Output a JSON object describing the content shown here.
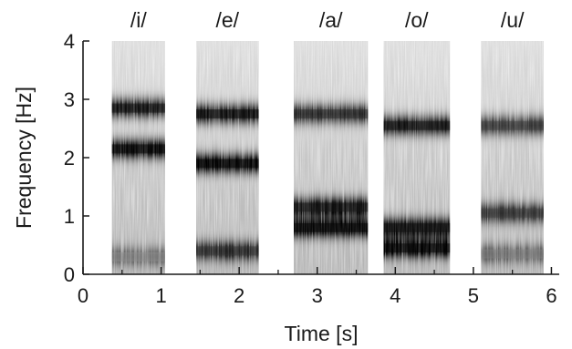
{
  "chart_data": {
    "type": "heatmap",
    "title": "",
    "xlabel": "Time [s]",
    "ylabel": "Frequency [Hz]",
    "xlim": [
      0,
      6.1
    ],
    "ylim": [
      0,
      4
    ],
    "xticks": [
      0,
      1,
      2,
      3,
      4,
      5,
      6
    ],
    "yticks": [
      0,
      1,
      2,
      3,
      4
    ],
    "x_minor_ticks": [
      0.5,
      1.5,
      2.5,
      3.5,
      4.5,
      5.5
    ],
    "grid": false,
    "segments": [
      {
        "label": "/i/",
        "start": 0.37,
        "end": 1.05,
        "formants": [
          {
            "freq": 0.3,
            "strength": 0.38
          },
          {
            "freq": 2.15,
            "strength": 0.92
          },
          {
            "freq": 2.85,
            "strength": 0.85
          }
        ]
      },
      {
        "label": "/e/",
        "start": 1.45,
        "end": 2.25,
        "formants": [
          {
            "freq": 0.4,
            "strength": 0.72
          },
          {
            "freq": 1.9,
            "strength": 0.95
          },
          {
            "freq": 2.75,
            "strength": 0.88
          }
        ]
      },
      {
        "label": "/a/",
        "start": 2.7,
        "end": 3.65,
        "formants": [
          {
            "freq": 0.8,
            "strength": 0.97
          },
          {
            "freq": 1.15,
            "strength": 0.85
          },
          {
            "freq": 2.75,
            "strength": 0.75
          }
        ]
      },
      {
        "label": "/o/",
        "start": 3.85,
        "end": 4.7,
        "formants": [
          {
            "freq": 0.45,
            "strength": 0.95
          },
          {
            "freq": 0.8,
            "strength": 0.9
          },
          {
            "freq": 2.55,
            "strength": 0.85
          }
        ]
      },
      {
        "label": "/u/",
        "start": 5.1,
        "end": 5.9,
        "formants": [
          {
            "freq": 0.35,
            "strength": 0.42
          },
          {
            "freq": 1.05,
            "strength": 0.68
          },
          {
            "freq": 2.55,
            "strength": 0.68
          }
        ]
      }
    ]
  }
}
